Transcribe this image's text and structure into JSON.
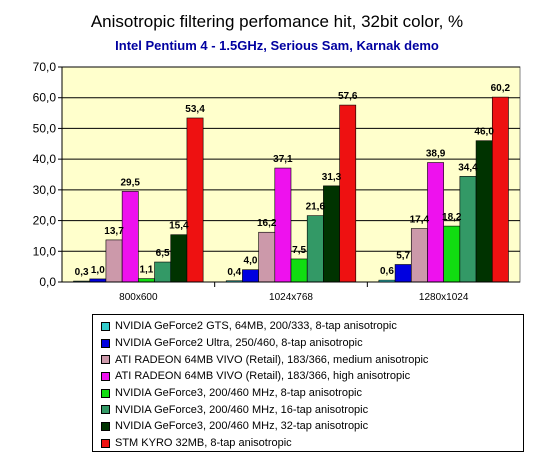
{
  "chart_data": {
    "type": "bar",
    "title": "Anisotropic filtering perfomance hit, 32bit color, %",
    "subtitle": "Intel Pentium 4 - 1.5GHz, Serious Sam, Karnak demo",
    "categories": [
      "800x600",
      "1024x768",
      "1280x1024"
    ],
    "ylim": [
      0,
      70
    ],
    "yticks": [
      "0,0",
      "10,0",
      "20,0",
      "30,0",
      "40,0",
      "50,0",
      "60,0",
      "70,0"
    ],
    "grid": true,
    "legend_position": "bottom",
    "series": [
      {
        "name": "NVIDIA GeForce2 GTS, 64MB, 200/333, 8-tap anisotropic",
        "color": "#33cccc",
        "values": [
          0.3,
          0.4,
          0.6
        ],
        "labels": [
          "0,3",
          "0,4",
          "0,6"
        ]
      },
      {
        "name": "NVIDIA GeForce2 Ultra, 250/460, 8-tap anisotropic",
        "color": "#0000e0",
        "values": [
          1.0,
          4.0,
          5.7
        ],
        "labels": [
          "1,0",
          "4,0",
          "5,7"
        ]
      },
      {
        "name": "ATI RADEON 64MB VIVO (Retail), 183/366, medium anisotropic",
        "color": "#cc99aa",
        "values": [
          13.7,
          16.2,
          17.4
        ],
        "labels": [
          "13,7",
          "16,2",
          "17,4"
        ]
      },
      {
        "name": "ATI RADEON 64MB VIVO (Retail), 183/366, high anisotropic",
        "color": "#ee11ee",
        "values": [
          29.5,
          37.1,
          38.9
        ],
        "labels": [
          "29,5",
          "37,1",
          "38,9"
        ]
      },
      {
        "name": "NVIDIA GeForce3, 200/460 MHz, 8-tap anisotropic",
        "color": "#11dd11",
        "values": [
          1.1,
          7.5,
          18.2
        ],
        "labels": [
          "1,1",
          "7,5",
          "18,2"
        ]
      },
      {
        "name": "NVIDIA GeForce3, 200/460 MHz, 16-tap anisotropic",
        "color": "#339966",
        "values": [
          6.5,
          21.6,
          34.4
        ],
        "labels": [
          "6,5",
          "21,6",
          "34,4"
        ]
      },
      {
        "name": "NVIDIA GeForce3, 200/460 MHz, 32-tap anisotropic",
        "color": "#003300",
        "values": [
          15.4,
          31.3,
          46.0
        ],
        "labels": [
          "15,4",
          "31,3",
          "46,0"
        ]
      },
      {
        "name": "STM KYRO 32MB, 8-tap anisotropic",
        "color": "#ee1111",
        "values": [
          53.4,
          57.6,
          60.2
        ],
        "labels": [
          "53,4",
          "57,6",
          "60,2"
        ]
      }
    ]
  },
  "colors": {
    "plot_background": "#ffffcc",
    "subtitle": "#0000a0"
  }
}
